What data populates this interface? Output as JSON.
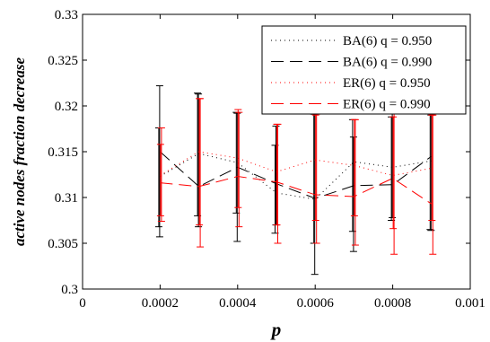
{
  "chart_data": {
    "type": "line",
    "xlabel": "p",
    "ylabel": "active nodes fraction decrease",
    "xlim": [
      0,
      0.001
    ],
    "ylim": [
      0.3,
      0.33
    ],
    "x_ticks": [
      0,
      0.0002,
      0.0004,
      0.0006,
      0.0008,
      0.001
    ],
    "x_tick_labels": [
      "0",
      "0.0002",
      "0.0004",
      "0.0006",
      "0.0008",
      "0.001"
    ],
    "y_ticks": [
      0.3,
      0.305,
      0.31,
      0.315,
      0.32,
      0.325,
      0.33
    ],
    "y_tick_labels": [
      "0.3",
      "0.305",
      "0.31",
      "0.315",
      "0.32",
      "0.325",
      "0.33"
    ],
    "grid": false,
    "legend_position": "top-right",
    "x": [
      0.0002,
      0.0003,
      0.0004,
      0.0005,
      0.0006,
      0.0007,
      0.0008,
      0.0009
    ],
    "series": [
      {
        "name": "BA(6) q = 0.950",
        "color": "#000000",
        "style": "dotted",
        "values": [
          0.3123,
          0.3148,
          0.3138,
          0.3105,
          0.3098,
          0.3139,
          0.3133,
          0.314
        ],
        "err_low": [
          0.3068,
          0.308,
          0.3083,
          0.3061,
          0.305,
          0.3063,
          0.3075,
          0.3065
        ],
        "err_high": [
          0.3176,
          0.3214,
          0.3193,
          0.3157,
          0.3191,
          0.3185,
          0.3188,
          0.3195
        ]
      },
      {
        "name": "BA(6) q = 0.990",
        "color": "#000000",
        "style": "dashed",
        "values": [
          0.315,
          0.3112,
          0.3133,
          0.3115,
          0.3099,
          0.3113,
          0.3114,
          0.3145
        ],
        "err_low": [
          0.3057,
          0.3068,
          0.3052,
          0.307,
          0.3016,
          0.3041,
          0.3078,
          0.3064
        ],
        "err_high": [
          0.3222,
          0.3213,
          0.3192,
          0.3178,
          0.3191,
          0.3166,
          0.3192,
          0.319
        ]
      },
      {
        "name": "ER(6) q = 0.950",
        "color": "#ff0000",
        "style": "dotted",
        "values": [
          0.3124,
          0.315,
          0.3143,
          0.3128,
          0.3141,
          0.3135,
          0.3124,
          0.3132
        ],
        "err_low": [
          0.308,
          0.307,
          0.3089,
          0.307,
          0.3075,
          0.308,
          0.3066,
          0.3075
        ],
        "err_high": [
          0.3158,
          0.3208,
          0.3196,
          0.318,
          0.319,
          0.3185,
          0.3188,
          0.319
        ]
      },
      {
        "name": "ER(6) q = 0.990",
        "color": "#ff0000",
        "style": "dashed",
        "values": [
          0.3116,
          0.3112,
          0.3123,
          0.3117,
          0.3103,
          0.3101,
          0.3121,
          0.3093
        ],
        "err_low": [
          0.3074,
          0.3046,
          0.3068,
          0.305,
          0.305,
          0.3048,
          0.3038,
          0.3038
        ],
        "err_high": [
          0.3176,
          0.3208,
          0.3193,
          0.318,
          0.3191,
          0.3185,
          0.3192,
          0.319
        ]
      }
    ]
  }
}
